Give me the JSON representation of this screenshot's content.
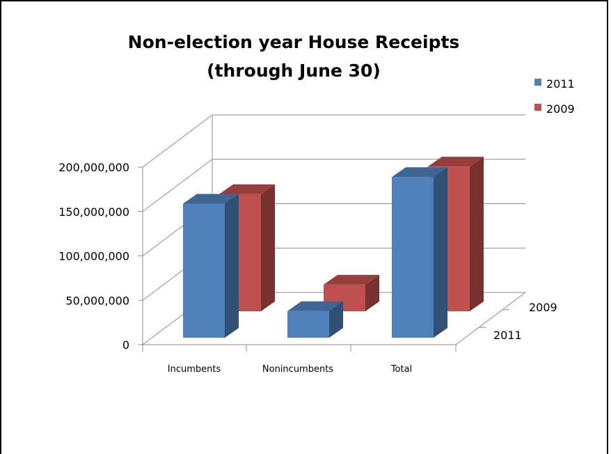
{
  "chart_data": {
    "type": "bar",
    "title": [
      "Non-election year House Receipts",
      "(through June 30)"
    ],
    "categories": [
      "Incumbents",
      "Nonincumbents",
      "Total"
    ],
    "series": [
      {
        "name": "2011",
        "values": [
          151000000,
          30000000,
          181000000
        ],
        "color": "#4F81BD"
      },
      {
        "name": "2009",
        "values": [
          132000000,
          30000000,
          163000000
        ],
        "color": "#C0504D"
      }
    ],
    "depth_labels": [
      "2009",
      "2011"
    ],
    "ylim": [
      0,
      200000000
    ],
    "yticks": [
      "0",
      "50,000,000",
      "100,000,000",
      "150,000,000",
      "200,000,000"
    ],
    "grid": true,
    "legend": "top-right",
    "style": "3d-column"
  }
}
